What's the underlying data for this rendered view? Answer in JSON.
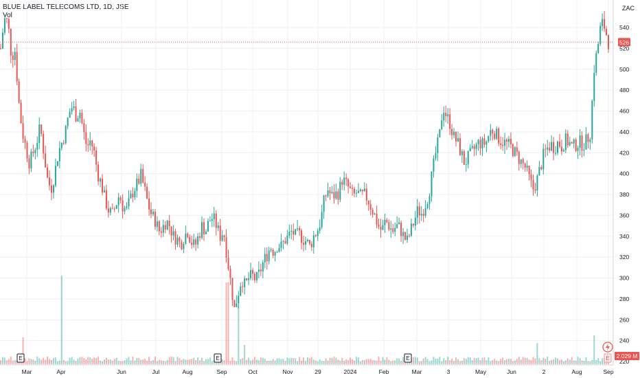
{
  "header": {
    "title": "BLUE LABEL TELECOMS LTD, 1D, JSE",
    "volume_label": "Vol",
    "currency": "ZAC"
  },
  "colors": {
    "up": "#26a69a",
    "down": "#ef5350",
    "grid": "#eef0f3",
    "axis_text": "#131722",
    "price_line": "#ef5350"
  },
  "price_axis_ticks": [
    "540",
    "520",
    "500",
    "480",
    "460",
    "440",
    "420",
    "400",
    "380",
    "360",
    "340",
    "320",
    "300",
    "280",
    "260",
    "240",
    "220"
  ],
  "time_axis_ticks": [
    "Mar",
    "Apr",
    "Jun",
    "Jul",
    "Aug",
    "Sep",
    "Oct",
    "Nov",
    "29",
    "2024",
    "Feb",
    "Mar",
    "3",
    "May",
    "Jun",
    "2",
    "Aug",
    "Sep"
  ],
  "last_price_label": "526",
  "last_volume_label": "2.029 M",
  "earnings_marker": "E",
  "chart_data": {
    "type": "candlestick",
    "title": "BLUE LABEL TELECOMS LTD, 1D, JSE",
    "currency": "ZAC",
    "ylim": [
      215,
      550
    ],
    "last_price": 526,
    "last_volume": "2.029 M",
    "grid": true,
    "price_path": [
      [
        0,
        520
      ],
      [
        1,
        548
      ],
      [
        2,
        545
      ],
      [
        3,
        512
      ],
      [
        4,
        518
      ],
      [
        5,
        470
      ],
      [
        6,
        440
      ],
      [
        7,
        425
      ],
      [
        8,
        410
      ],
      [
        10,
        430
      ],
      [
        11,
        445
      ],
      [
        12,
        420
      ],
      [
        13,
        395
      ],
      [
        14,
        385
      ],
      [
        15,
        400
      ],
      [
        16,
        420
      ],
      [
        17,
        430
      ],
      [
        18,
        440
      ],
      [
        19,
        458
      ],
      [
        20,
        465
      ],
      [
        21,
        455
      ],
      [
        22,
        460
      ],
      [
        23,
        440
      ],
      [
        24,
        425
      ],
      [
        25,
        432
      ],
      [
        26,
        420
      ],
      [
        27,
        400
      ],
      [
        28,
        390
      ],
      [
        29,
        375
      ],
      [
        30,
        365
      ],
      [
        31,
        360
      ],
      [
        32,
        370
      ],
      [
        33,
        380
      ],
      [
        34,
        368
      ],
      [
        35,
        365
      ],
      [
        36,
        375
      ],
      [
        37,
        385
      ],
      [
        38,
        390
      ],
      [
        39,
        398
      ],
      [
        40,
        385
      ],
      [
        41,
        370
      ],
      [
        42,
        360
      ],
      [
        43,
        355
      ],
      [
        44,
        345
      ],
      [
        45,
        348
      ],
      [
        46,
        355
      ],
      [
        47,
        350
      ],
      [
        48,
        340
      ],
      [
        49,
        338
      ],
      [
        50,
        332
      ],
      [
        51,
        340
      ],
      [
        52,
        345
      ],
      [
        53,
        335
      ],
      [
        54,
        330
      ],
      [
        55,
        340
      ],
      [
        56,
        350
      ],
      [
        57,
        345
      ],
      [
        58,
        355
      ],
      [
        59,
        358
      ],
      [
        60,
        350
      ],
      [
        61,
        340
      ],
      [
        62,
        345
      ],
      [
        63,
        320
      ],
      [
        64,
        295
      ],
      [
        65,
        270
      ],
      [
        66,
        285
      ],
      [
        67,
        300
      ],
      [
        68,
        292
      ],
      [
        69,
        300
      ],
      [
        70,
        302
      ],
      [
        71,
        298
      ],
      [
        72,
        305
      ],
      [
        73,
        315
      ],
      [
        74,
        322
      ],
      [
        75,
        330
      ],
      [
        76,
        325
      ],
      [
        77,
        332
      ],
      [
        78,
        330
      ],
      [
        79,
        336
      ],
      [
        80,
        340
      ],
      [
        81,
        345
      ],
      [
        82,
        340
      ],
      [
        83,
        342
      ],
      [
        84,
        338
      ],
      [
        85,
        335
      ],
      [
        86,
        330
      ],
      [
        87,
        340
      ],
      [
        88,
        345
      ],
      [
        89,
        355
      ],
      [
        90,
        375
      ],
      [
        91,
        385
      ],
      [
        92,
        378
      ],
      [
        93,
        380
      ],
      [
        94,
        382
      ],
      [
        95,
        395
      ],
      [
        96,
        390
      ],
      [
        97,
        385
      ],
      [
        98,
        378
      ],
      [
        99,
        382
      ],
      [
        100,
        378
      ],
      [
        101,
        380
      ],
      [
        102,
        376
      ],
      [
        103,
        368
      ],
      [
        104,
        360
      ],
      [
        105,
        350
      ],
      [
        106,
        345
      ],
      [
        107,
        355
      ],
      [
        108,
        350
      ],
      [
        109,
        345
      ],
      [
        110,
        350
      ],
      [
        111,
        348
      ],
      [
        112,
        340
      ],
      [
        113,
        335
      ],
      [
        114,
        345
      ],
      [
        115,
        355
      ],
      [
        116,
        365
      ],
      [
        117,
        362
      ],
      [
        118,
        370
      ],
      [
        119,
        380
      ],
      [
        120,
        400
      ],
      [
        121,
        420
      ],
      [
        122,
        435
      ],
      [
        123,
        465
      ],
      [
        124,
        455
      ],
      [
        125,
        448
      ],
      [
        126,
        435
      ],
      [
        127,
        430
      ],
      [
        128,
        420
      ],
      [
        129,
        410
      ],
      [
        130,
        415
      ],
      [
        131,
        420
      ],
      [
        132,
        425
      ],
      [
        133,
        430
      ],
      [
        134,
        428
      ],
      [
        135,
        430
      ],
      [
        136,
        440
      ],
      [
        137,
        442
      ],
      [
        138,
        436
      ],
      [
        139,
        432
      ],
      [
        140,
        430
      ],
      [
        141,
        428
      ],
      [
        142,
        425
      ],
      [
        143,
        420
      ],
      [
        144,
        415
      ],
      [
        145,
        410
      ],
      [
        146,
        405
      ],
      [
        147,
        395
      ],
      [
        148,
        385
      ],
      [
        149,
        392
      ],
      [
        150,
        405
      ],
      [
        151,
        418
      ],
      [
        152,
        424
      ],
      [
        153,
        428
      ],
      [
        154,
        425
      ],
      [
        155,
        430
      ],
      [
        156,
        426
      ],
      [
        157,
        432
      ],
      [
        158,
        430
      ],
      [
        159,
        425
      ],
      [
        160,
        428
      ],
      [
        161,
        430
      ],
      [
        162,
        428
      ],
      [
        163,
        432
      ],
      [
        164,
        440
      ],
      [
        165,
        500
      ],
      [
        166,
        520
      ],
      [
        167,
        545
      ],
      [
        168,
        540
      ],
      [
        169,
        526
      ]
    ],
    "volume_spikes": [
      {
        "i": 17,
        "v": 0.92
      },
      {
        "i": 63,
        "v": 0.85
      },
      {
        "i": 66,
        "v": 0.62
      },
      {
        "i": 6,
        "v": 0.28
      },
      {
        "i": 68,
        "v": 0.2
      },
      {
        "i": 165,
        "v": 0.3
      },
      {
        "i": 149,
        "v": 0.22
      }
    ],
    "earnings_markers_at": [
      5,
      60,
      112,
      168
    ]
  }
}
